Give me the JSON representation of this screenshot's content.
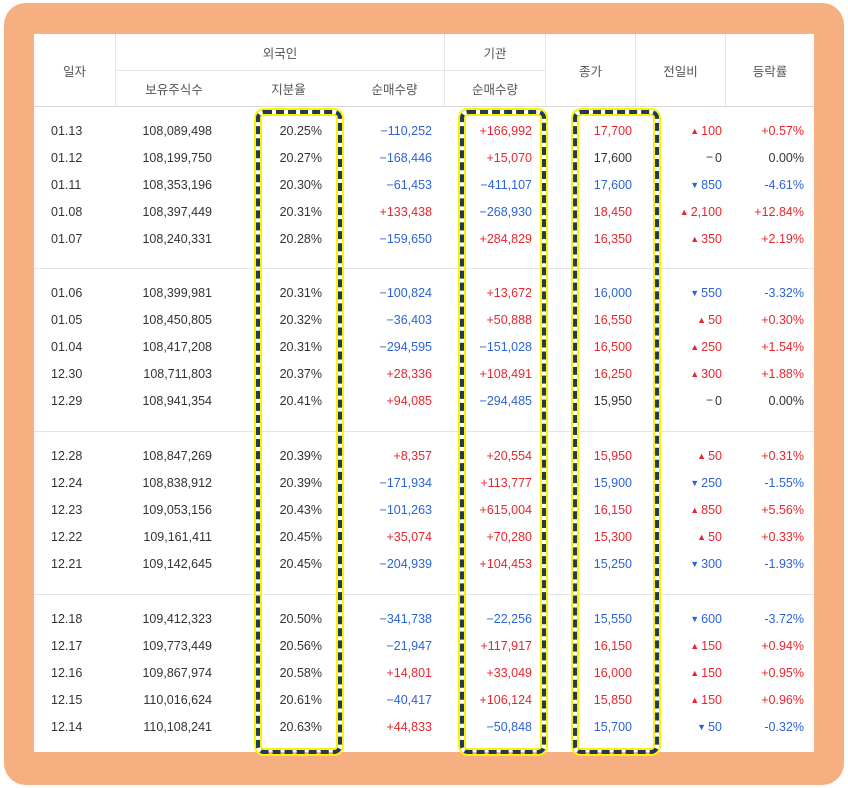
{
  "colors": {
    "frame": "#f5af80",
    "up": "#e8262e",
    "down": "#2c63d6",
    "highlight_border": "#1f3a5a",
    "highlight_glow": "#fff200"
  },
  "headers": {
    "date": "일자",
    "foreign": "외국인",
    "institution": "기관",
    "holdings": "보유주식수",
    "ratio": "지분율",
    "net_foreign": "순매수량",
    "net_inst": "순매수량",
    "close": "종가",
    "change": "전일비",
    "rate": "등락률"
  },
  "icons": {
    "up": "triangle-up",
    "down": "triangle-down",
    "flat": "dash"
  },
  "rows": [
    {
      "date": "01.13",
      "holdings": "108,089,498",
      "ratio": "20.25%",
      "net_foreign": "−110,252",
      "net_inst": "+166,992",
      "close": "17,700",
      "change": "100",
      "rate": "+0.57%",
      "dir": "up"
    },
    {
      "date": "01.12",
      "holdings": "108,199,750",
      "ratio": "20.27%",
      "net_foreign": "−168,446",
      "net_inst": "+15,070",
      "close": "17,600",
      "change": "0",
      "rate": "0.00%",
      "dir": "flat"
    },
    {
      "date": "01.11",
      "holdings": "108,353,196",
      "ratio": "20.30%",
      "net_foreign": "−61,453",
      "net_inst": "−411,107",
      "close": "17,600",
      "change": "850",
      "rate": "-4.61%",
      "dir": "down"
    },
    {
      "date": "01.08",
      "holdings": "108,397,449",
      "ratio": "20.31%",
      "net_foreign": "+133,438",
      "net_inst": "−268,930",
      "close": "18,450",
      "change": "2,100",
      "rate": "+12.84%",
      "dir": "up"
    },
    {
      "date": "01.07",
      "holdings": "108,240,331",
      "ratio": "20.28%",
      "net_foreign": "−159,650",
      "net_inst": "+284,829",
      "close": "16,350",
      "change": "350",
      "rate": "+2.19%",
      "dir": "up"
    },
    {
      "date": "01.06",
      "holdings": "108,399,981",
      "ratio": "20.31%",
      "net_foreign": "−100,824",
      "net_inst": "+13,672",
      "close": "16,000",
      "change": "550",
      "rate": "-3.32%",
      "dir": "down"
    },
    {
      "date": "01.05",
      "holdings": "108,450,805",
      "ratio": "20.32%",
      "net_foreign": "−36,403",
      "net_inst": "+50,888",
      "close": "16,550",
      "change": "50",
      "rate": "+0.30%",
      "dir": "up"
    },
    {
      "date": "01.04",
      "holdings": "108,417,208",
      "ratio": "20.31%",
      "net_foreign": "−294,595",
      "net_inst": "−151,028",
      "close": "16,500",
      "change": "250",
      "rate": "+1.54%",
      "dir": "up"
    },
    {
      "date": "12.30",
      "holdings": "108,711,803",
      "ratio": "20.37%",
      "net_foreign": "+28,336",
      "net_inst": "+108,491",
      "close": "16,250",
      "change": "300",
      "rate": "+1.88%",
      "dir": "up"
    },
    {
      "date": "12.29",
      "holdings": "108,941,354",
      "ratio": "20.41%",
      "net_foreign": "+94,085",
      "net_inst": "−294,485",
      "close": "15,950",
      "change": "0",
      "rate": "0.00%",
      "dir": "flat"
    },
    {
      "date": "12.28",
      "holdings": "108,847,269",
      "ratio": "20.39%",
      "net_foreign": "+8,357",
      "net_inst": "+20,554",
      "close": "15,950",
      "change": "50",
      "rate": "+0.31%",
      "dir": "up"
    },
    {
      "date": "12.24",
      "holdings": "108,838,912",
      "ratio": "20.39%",
      "net_foreign": "−171,934",
      "net_inst": "+113,777",
      "close": "15,900",
      "change": "250",
      "rate": "-1.55%",
      "dir": "down"
    },
    {
      "date": "12.23",
      "holdings": "109,053,156",
      "ratio": "20.43%",
      "net_foreign": "−101,263",
      "net_inst": "+615,004",
      "close": "16,150",
      "change": "850",
      "rate": "+5.56%",
      "dir": "up"
    },
    {
      "date": "12.22",
      "holdings": "109,161,411",
      "ratio": "20.45%",
      "net_foreign": "+35,074",
      "net_inst": "+70,280",
      "close": "15,300",
      "change": "50",
      "rate": "+0.33%",
      "dir": "up"
    },
    {
      "date": "12.21",
      "holdings": "109,142,645",
      "ratio": "20.45%",
      "net_foreign": "−204,939",
      "net_inst": "+104,453",
      "close": "15,250",
      "change": "300",
      "rate": "-1.93%",
      "dir": "down"
    },
    {
      "date": "12.18",
      "holdings": "109,412,323",
      "ratio": "20.50%",
      "net_foreign": "−341,738",
      "net_inst": "−22,256",
      "close": "15,550",
      "change": "600",
      "rate": "-3.72%",
      "dir": "down"
    },
    {
      "date": "12.17",
      "holdings": "109,773,449",
      "ratio": "20.56%",
      "net_foreign": "−21,947",
      "net_inst": "+117,917",
      "close": "16,150",
      "change": "150",
      "rate": "+0.94%",
      "dir": "up"
    },
    {
      "date": "12.16",
      "holdings": "109,867,974",
      "ratio": "20.58%",
      "net_foreign": "+14,801",
      "net_inst": "+33,049",
      "close": "16,000",
      "change": "150",
      "rate": "+0.95%",
      "dir": "up"
    },
    {
      "date": "12.15",
      "holdings": "110,016,624",
      "ratio": "20.61%",
      "net_foreign": "−40,417",
      "net_inst": "+106,124",
      "close": "15,850",
      "change": "150",
      "rate": "+0.96%",
      "dir": "up"
    },
    {
      "date": "12.14",
      "holdings": "110,108,241",
      "ratio": "20.63%",
      "net_foreign": "+44,833",
      "net_inst": "−50,848",
      "close": "15,700",
      "change": "50",
      "rate": "-0.32%",
      "dir": "down"
    }
  ]
}
